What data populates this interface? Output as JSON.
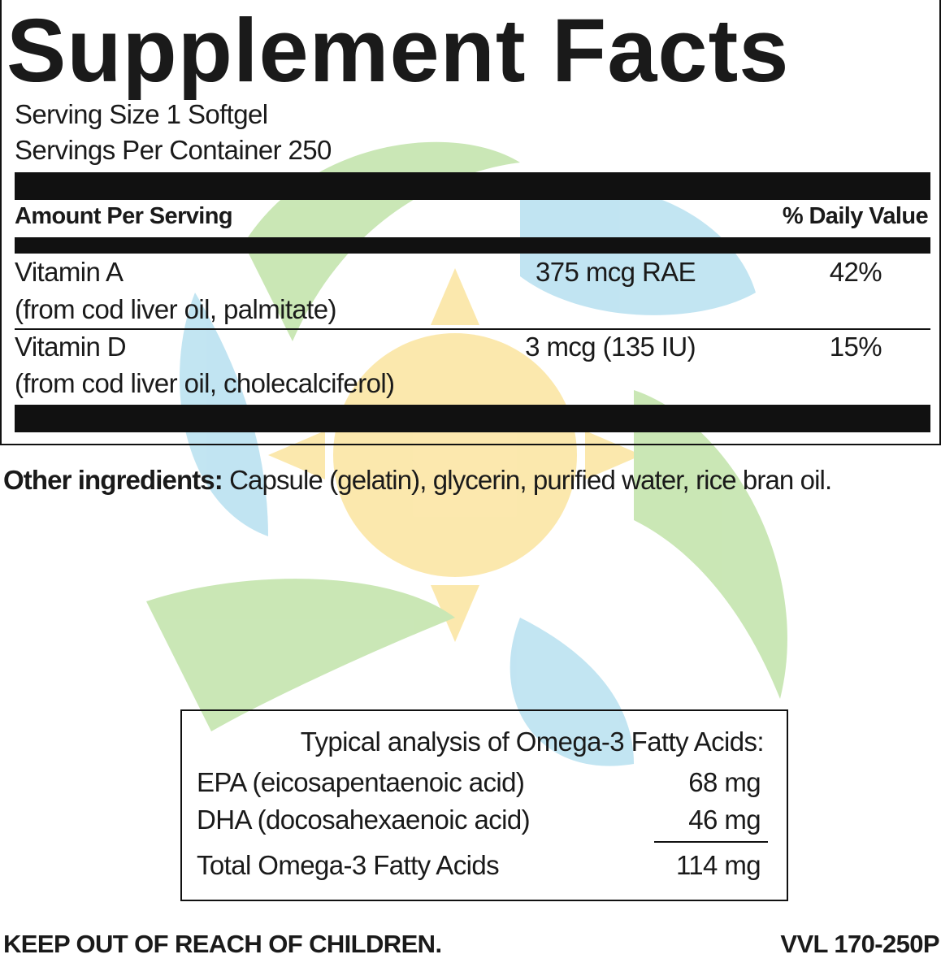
{
  "title": "Supplement Facts",
  "serving_size": "Serving Size 1 Softgel",
  "servings_per_container": "Servings Per Container 250",
  "table": {
    "header": [
      "Amount Per Serving",
      "% Daily Value"
    ],
    "rows": [
      [
        "Vitamin A",
        "(from cod liver oil, palmitate)",
        "375 mcg RAE",
        "42%"
      ],
      [
        "Vitamin D",
        "(from cod liver oil, cholecalciferol)",
        "3 mcg (135 IU)",
        "15%"
      ]
    ]
  },
  "other_ingredients": {
    "label": "Other ingredients:",
    "text": "Capsule (gelatin), glycerin, purified water, rice bran oil."
  },
  "omega": {
    "title": "Typical analysis of Omega-3 Fatty Acids:",
    "rows": [
      [
        "EPA (eicosapentaenoic acid)",
        "68 mg"
      ],
      [
        "DHA (docosahexaenoic acid)",
        "46 mg"
      ]
    ],
    "total": [
      "Total Omega-3 Fatty Acids",
      "114 mg"
    ]
  },
  "footer": {
    "warning": "KEEP OUT OF REACH OF CHILDREN.",
    "code": "VVL 170-250P"
  }
}
